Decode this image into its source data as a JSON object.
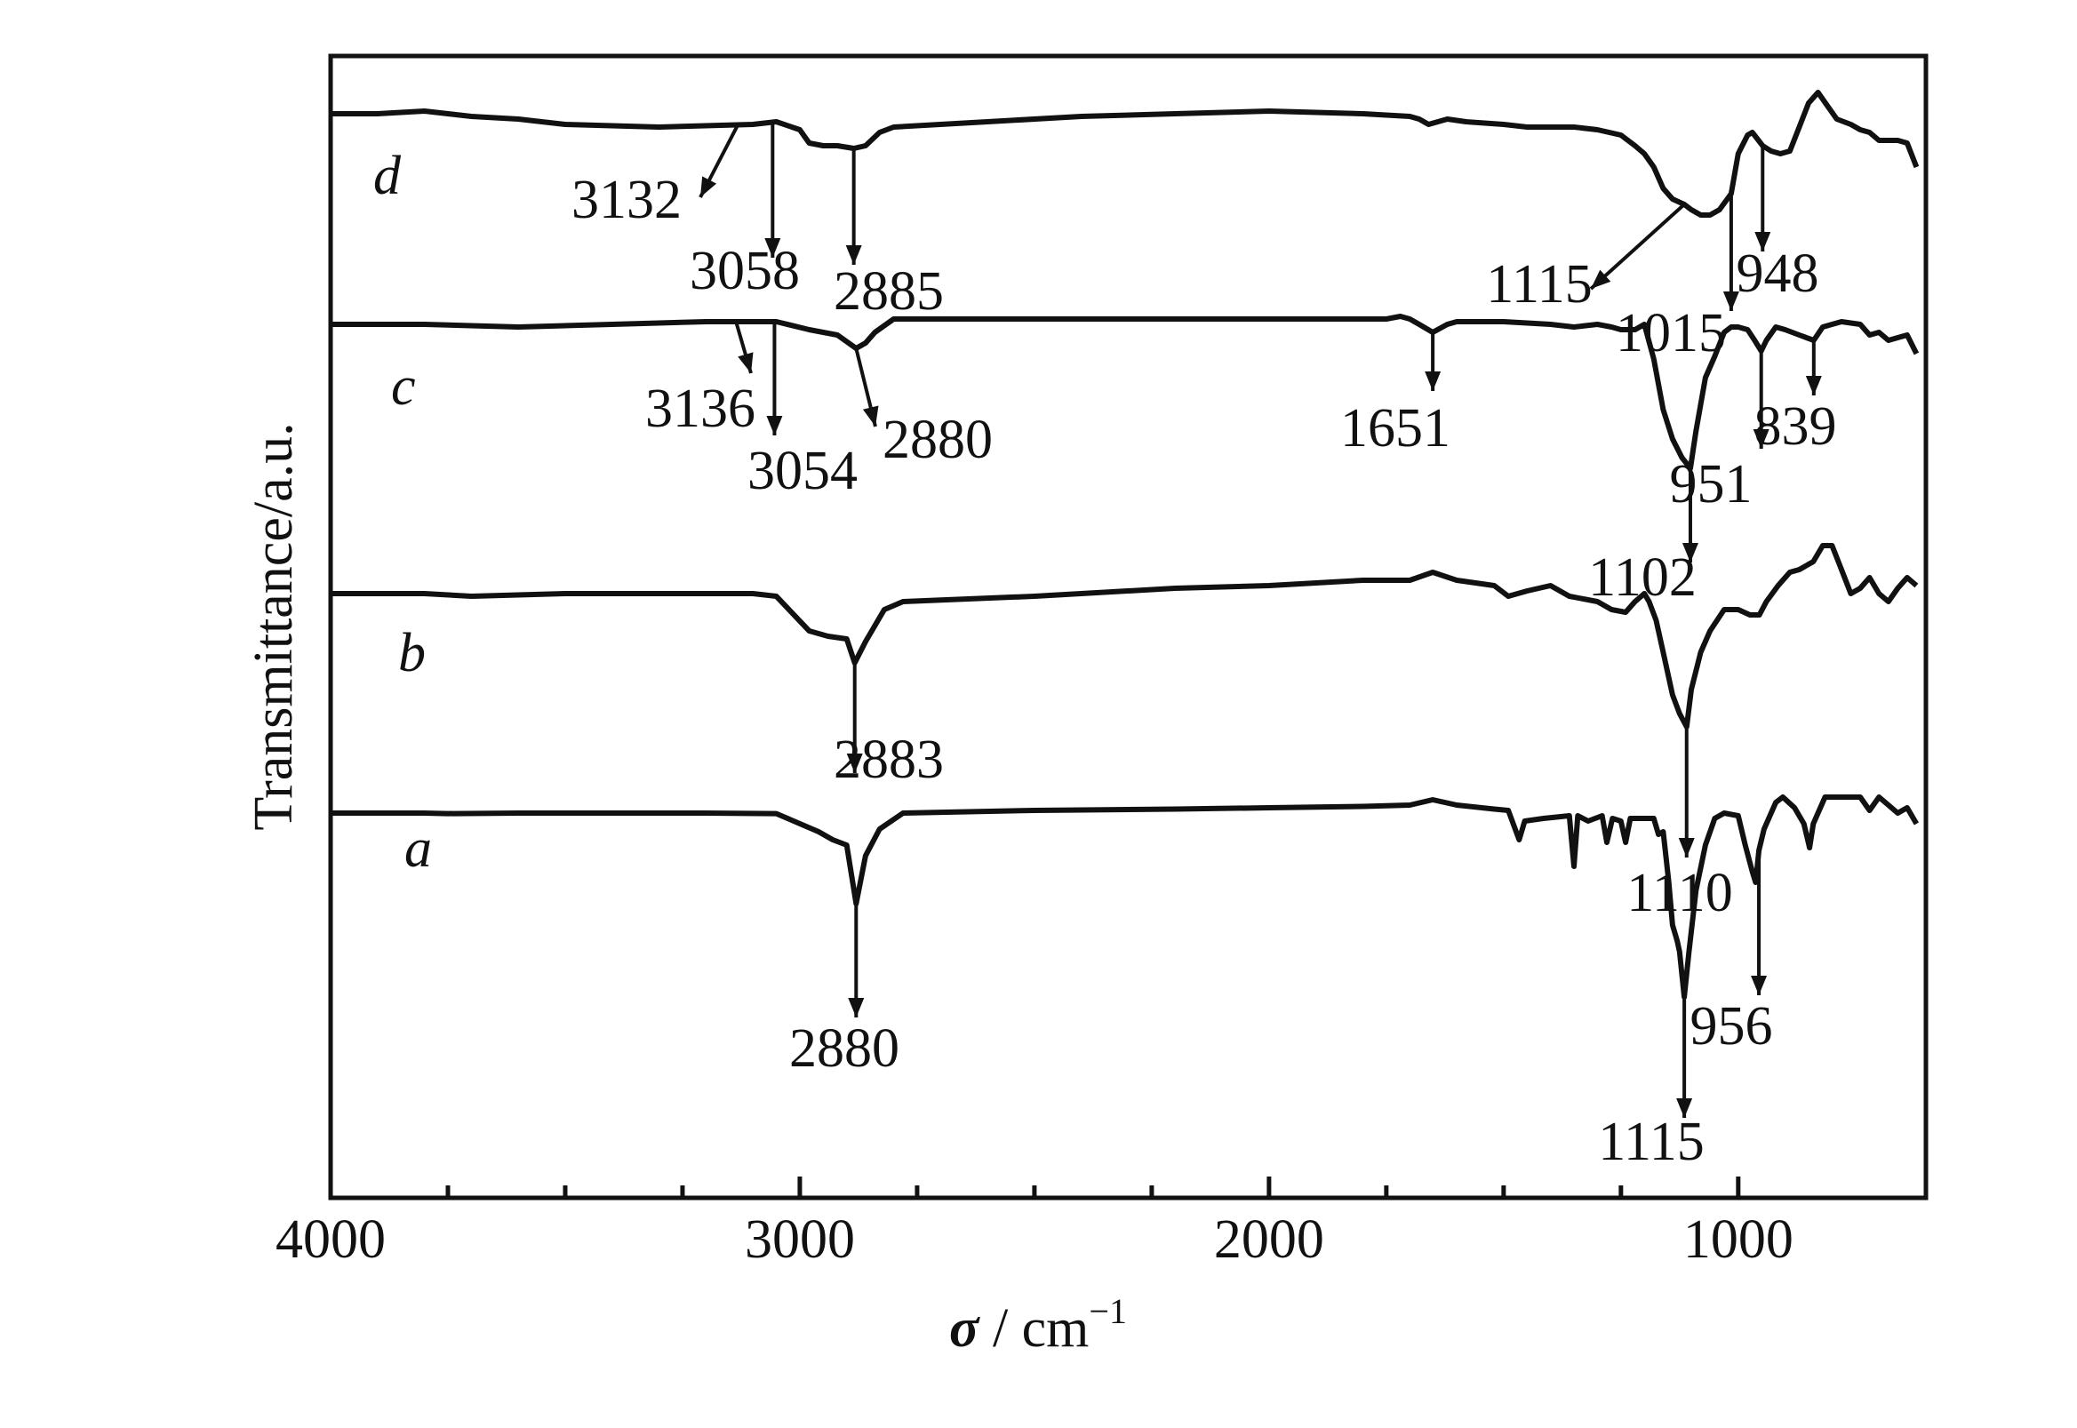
{
  "chart_data": {
    "type": "line",
    "xlabel_symbol": "σ",
    "xlabel_unit": " / cm",
    "xlabel_exp": "−1",
    "ylabel": "Transmittance/a.u.",
    "xlim": [
      4000,
      600
    ],
    "x_ticks": [
      "4000",
      "3000",
      "2000",
      "1000"
    ],
    "grid": false,
    "series": [
      {
        "name": "a",
        "points": [
          [
            4000,
            0.6
          ],
          [
            3800,
            0.6
          ],
          [
            3750,
            0.62
          ],
          [
            3600,
            0.6
          ],
          [
            3200,
            0.6
          ],
          [
            3050,
            0.62
          ],
          [
            2960,
            1.3
          ],
          [
            2930,
            1.6
          ],
          [
            2900,
            1.8
          ],
          [
            2880,
            4.0
          ],
          [
            2860,
            2.2
          ],
          [
            2830,
            1.2
          ],
          [
            2780,
            0.6
          ],
          [
            2500,
            0.5
          ],
          [
            2200,
            0.45
          ],
          [
            2000,
            0.4
          ],
          [
            1800,
            0.35
          ],
          [
            1700,
            0.3
          ],
          [
            1651,
            0.1
          ],
          [
            1600,
            0.3
          ],
          [
            1520,
            0.45
          ],
          [
            1490,
            0.5
          ],
          [
            1467,
            1.6
          ],
          [
            1455,
            0.9
          ],
          [
            1415,
            0.8
          ],
          [
            1360,
            0.7
          ],
          [
            1350,
            2.6
          ],
          [
            1342,
            0.7
          ],
          [
            1320,
            0.9
          ],
          [
            1290,
            0.7
          ],
          [
            1280,
            1.7
          ],
          [
            1268,
            0.8
          ],
          [
            1250,
            0.9
          ],
          [
            1240,
            1.7
          ],
          [
            1230,
            0.8
          ],
          [
            1180,
            0.8
          ],
          [
            1170,
            1.4
          ],
          [
            1160,
            1.3
          ],
          [
            1148,
            3.2
          ],
          [
            1140,
            4.8
          ],
          [
            1130,
            5.4
          ],
          [
            1125,
            5.8
          ],
          [
            1115,
            7.5
          ],
          [
            1105,
            5.8
          ],
          [
            1090,
            3.5
          ],
          [
            1070,
            1.8
          ],
          [
            1050,
            0.8
          ],
          [
            1030,
            0.6
          ],
          [
            1000,
            0.7
          ],
          [
            985,
            1.8
          ],
          [
            970,
            2.8
          ],
          [
            963,
            3.2
          ],
          [
            956,
            2.0
          ],
          [
            945,
            1.2
          ],
          [
            920,
            0.2
          ],
          [
            905,
            0.0
          ],
          [
            880,
            0.4
          ],
          [
            860,
            1.0
          ],
          [
            848,
            1.9
          ],
          [
            840,
            1.0
          ],
          [
            815,
            0.0
          ],
          [
            780,
            0.0
          ],
          [
            740,
            0.0
          ],
          [
            720,
            0.5
          ],
          [
            700,
            0.0
          ],
          [
            680,
            0.3
          ],
          [
            660,
            0.6
          ],
          [
            640,
            0.4
          ],
          [
            620,
            1.0
          ]
        ]
      },
      {
        "name": "b",
        "points": [
          [
            4000,
            0.0
          ],
          [
            3800,
            0.0
          ],
          [
            3700,
            0.1
          ],
          [
            3500,
            0.0
          ],
          [
            3300,
            0.0
          ],
          [
            3100,
            0.0
          ],
          [
            3050,
            0.1
          ],
          [
            2980,
            1.4
          ],
          [
            2940,
            1.6
          ],
          [
            2900,
            1.7
          ],
          [
            2883,
            2.6
          ],
          [
            2860,
            1.8
          ],
          [
            2820,
            0.6
          ],
          [
            2780,
            0.3
          ],
          [
            2500,
            0.1
          ],
          [
            2200,
            -0.2
          ],
          [
            2000,
            -0.3
          ],
          [
            1800,
            -0.5
          ],
          [
            1700,
            -0.5
          ],
          [
            1651,
            -0.8
          ],
          [
            1600,
            -0.5
          ],
          [
            1520,
            -0.3
          ],
          [
            1490,
            0.1
          ],
          [
            1450,
            -0.1
          ],
          [
            1400,
            -0.3
          ],
          [
            1360,
            0.1
          ],
          [
            1300,
            0.3
          ],
          [
            1270,
            0.6
          ],
          [
            1240,
            0.7
          ],
          [
            1220,
            0.3
          ],
          [
            1200,
            0.0
          ],
          [
            1190,
            0.3
          ],
          [
            1175,
            1.0
          ],
          [
            1160,
            2.2
          ],
          [
            1140,
            3.8
          ],
          [
            1125,
            4.5
          ],
          [
            1110,
            5.0
          ],
          [
            1100,
            3.6
          ],
          [
            1080,
            2.2
          ],
          [
            1060,
            1.4
          ],
          [
            1030,
            0.6
          ],
          [
            1000,
            0.6
          ],
          [
            975,
            0.8
          ],
          [
            955,
            0.8
          ],
          [
            940,
            0.3
          ],
          [
            915,
            -0.3
          ],
          [
            890,
            -0.8
          ],
          [
            870,
            -0.9
          ],
          [
            840,
            -1.2
          ],
          [
            820,
            -1.8
          ],
          [
            800,
            -1.8
          ],
          [
            780,
            -0.9
          ],
          [
            760,
            0.0
          ],
          [
            740,
            -0.2
          ],
          [
            720,
            -0.6
          ],
          [
            700,
            0.0
          ],
          [
            680,
            0.3
          ],
          [
            660,
            -0.2
          ],
          [
            640,
            -0.6
          ],
          [
            620,
            -0.3
          ]
        ]
      },
      {
        "name": "c",
        "points": [
          [
            4000,
            0.0
          ],
          [
            3800,
            0.0
          ],
          [
            3600,
            0.1
          ],
          [
            3400,
            0.0
          ],
          [
            3200,
            -0.1
          ],
          [
            3050,
            -0.1
          ],
          [
            2980,
            0.2
          ],
          [
            2950,
            0.3
          ],
          [
            2920,
            0.4
          ],
          [
            2880,
            0.9
          ],
          [
            2860,
            0.7
          ],
          [
            2840,
            0.3
          ],
          [
            2800,
            -0.2
          ],
          [
            2600,
            -0.2
          ],
          [
            2400,
            -0.2
          ],
          [
            2200,
            -0.2
          ],
          [
            2000,
            -0.2
          ],
          [
            1800,
            -0.2
          ],
          [
            1750,
            -0.2
          ],
          [
            1720,
            -0.3
          ],
          [
            1700,
            -0.2
          ],
          [
            1680,
            0.0
          ],
          [
            1651,
            0.3
          ],
          [
            1620,
            0.0
          ],
          [
            1600,
            -0.1
          ],
          [
            1500,
            -0.1
          ],
          [
            1400,
            0.0
          ],
          [
            1350,
            0.1
          ],
          [
            1300,
            0.0
          ],
          [
            1270,
            0.1
          ],
          [
            1250,
            0.2
          ],
          [
            1220,
            0.2
          ],
          [
            1200,
            0.0
          ],
          [
            1180,
            1.3
          ],
          [
            1160,
            3.2
          ],
          [
            1140,
            4.3
          ],
          [
            1120,
            5.0
          ],
          [
            1102,
            5.4
          ],
          [
            1090,
            4.0
          ],
          [
            1070,
            2.0
          ],
          [
            1050,
            1.2
          ],
          [
            1030,
            0.3
          ],
          [
            1015,
            0.1
          ],
          [
            1000,
            0.1
          ],
          [
            980,
            0.2
          ],
          [
            965,
            0.6
          ],
          [
            951,
            1.0
          ],
          [
            940,
            0.6
          ],
          [
            920,
            0.1
          ],
          [
            900,
            0.2
          ],
          [
            870,
            0.4
          ],
          [
            839,
            0.6
          ],
          [
            820,
            0.1
          ],
          [
            780,
            -0.1
          ],
          [
            740,
            0.0
          ],
          [
            720,
            0.4
          ],
          [
            700,
            0.3
          ],
          [
            680,
            0.6
          ],
          [
            660,
            0.5
          ],
          [
            640,
            0.4
          ],
          [
            620,
            1.1
          ]
        ]
      },
      {
        "name": "d",
        "points": [
          [
            4000,
            0.0
          ],
          [
            3900,
            0.0
          ],
          [
            3800,
            -0.1
          ],
          [
            3700,
            0.1
          ],
          [
            3600,
            0.2
          ],
          [
            3500,
            0.4
          ],
          [
            3300,
            0.5
          ],
          [
            3100,
            0.4
          ],
          [
            3050,
            0.3
          ],
          [
            3000,
            0.6
          ],
          [
            2980,
            1.1
          ],
          [
            2950,
            1.2
          ],
          [
            2920,
            1.2
          ],
          [
            2885,
            1.3
          ],
          [
            2860,
            1.2
          ],
          [
            2830,
            0.7
          ],
          [
            2800,
            0.5
          ],
          [
            2600,
            0.3
          ],
          [
            2400,
            0.1
          ],
          [
            2200,
            0.0
          ],
          [
            2000,
            -0.1
          ],
          [
            1800,
            0.0
          ],
          [
            1700,
            0.1
          ],
          [
            1680,
            0.2
          ],
          [
            1660,
            0.4
          ],
          [
            1620,
            0.2
          ],
          [
            1580,
            0.3
          ],
          [
            1500,
            0.4
          ],
          [
            1450,
            0.5
          ],
          [
            1400,
            0.5
          ],
          [
            1350,
            0.5
          ],
          [
            1300,
            0.6
          ],
          [
            1250,
            0.8
          ],
          [
            1220,
            1.2
          ],
          [
            1200,
            1.5
          ],
          [
            1180,
            2.0
          ],
          [
            1160,
            2.8
          ],
          [
            1140,
            3.2
          ],
          [
            1115,
            3.4
          ],
          [
            1100,
            3.6
          ],
          [
            1080,
            3.8
          ],
          [
            1060,
            3.8
          ],
          [
            1040,
            3.6
          ],
          [
            1015,
            3.0
          ],
          [
            1000,
            1.5
          ],
          [
            980,
            0.8
          ],
          [
            970,
            0.7
          ],
          [
            948,
            1.2
          ],
          [
            930,
            1.4
          ],
          [
            910,
            1.5
          ],
          [
            890,
            1.4
          ],
          [
            870,
            0.5
          ],
          [
            850,
            -0.4
          ],
          [
            830,
            -0.8
          ],
          [
            810,
            -0.3
          ],
          [
            790,
            0.2
          ],
          [
            760,
            0.4
          ],
          [
            740,
            0.6
          ],
          [
            720,
            0.7
          ],
          [
            700,
            1.0
          ],
          [
            680,
            1.0
          ],
          [
            660,
            1.0
          ],
          [
            640,
            1.1
          ],
          [
            620,
            2.0
          ]
        ]
      }
    ],
    "annotations": [
      {
        "label": "2880",
        "curve": "a",
        "x": 2880
      },
      {
        "label": "1115",
        "curve": "a",
        "x": 1115
      },
      {
        "label": "956",
        "curve": "a",
        "x": 956
      },
      {
        "label": "1110",
        "curve": "b",
        "x": 1110
      },
      {
        "label": "2883",
        "curve": "b",
        "x": 2883
      },
      {
        "label": "1102",
        "curve": "c",
        "x": 1102
      },
      {
        "label": "951",
        "curve": "c",
        "x": 951
      },
      {
        "label": "839",
        "curve": "c",
        "x": 839
      },
      {
        "label": "1651",
        "curve": "c",
        "x": 1651
      },
      {
        "label": "3136",
        "curve": "c",
        "x": 3136
      },
      {
        "label": "3054",
        "curve": "c",
        "x": 3054
      },
      {
        "label": "2880",
        "curve": "c",
        "x": 2880
      },
      {
        "label": "3132",
        "curve": "d",
        "x": 3132
      },
      {
        "label": "3058",
        "curve": "d",
        "x": 3058
      },
      {
        "label": "2885",
        "curve": "d",
        "x": 2885
      },
      {
        "label": "1115",
        "curve": "d",
        "x": 1115
      },
      {
        "label": "1015",
        "curve": "d",
        "x": 1015
      },
      {
        "label": "948",
        "curve": "d",
        "x": 948
      }
    ]
  }
}
